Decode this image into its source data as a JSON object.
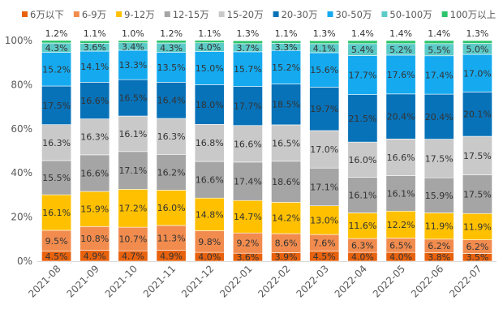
{
  "chart_data": {
    "type": "bar",
    "stacked": true,
    "percent": true,
    "title": "",
    "xlabel": "",
    "ylabel": "",
    "ylim": [
      0,
      100
    ],
    "yticks": [
      "0%",
      "20%",
      "40%",
      "60%",
      "80%",
      "100%"
    ],
    "legend_position": "top",
    "categories": [
      "2021-08",
      "2021-09",
      "2021-10",
      "2021-11",
      "2021-12",
      "2022-01",
      "2022-02",
      "2022-03",
      "2022-04",
      "2022-05",
      "2022-06",
      "2022-07"
    ],
    "series": [
      {
        "name": "6万以下",
        "color": "#E8620E",
        "values": [
          4.5,
          4.9,
          4.7,
          4.9,
          4.0,
          3.6,
          3.9,
          4.5,
          4.0,
          4.0,
          3.8,
          3.5
        ]
      },
      {
        "name": "6-9万",
        "color": "#F28C4E",
        "values": [
          9.5,
          10.8,
          10.7,
          11.3,
          9.8,
          9.2,
          8.6,
          7.6,
          6.3,
          6.5,
          6.2,
          6.2
        ]
      },
      {
        "name": "9-12万",
        "color": "#FFC000",
        "values": [
          16.1,
          15.9,
          17.2,
          16.0,
          14.8,
          14.7,
          14.2,
          13.0,
          11.6,
          12.2,
          11.9,
          11.9
        ]
      },
      {
        "name": "12-15万",
        "color": "#A5A5A5",
        "values": [
          15.5,
          16.6,
          17.1,
          16.2,
          16.6,
          17.4,
          18.6,
          17.1,
          16.1,
          16.1,
          15.9,
          17.5
        ]
      },
      {
        "name": "15-20万",
        "color": "#C9C9C9",
        "values": [
          16.3,
          16.3,
          16.1,
          16.3,
          16.8,
          16.6,
          16.5,
          17.0,
          16.0,
          16.6,
          17.5,
          17.5
        ]
      },
      {
        "name": "20-30万",
        "color": "#0872B8",
        "values": [
          17.5,
          16.6,
          16.5,
          16.4,
          18.0,
          17.7,
          18.5,
          19.7,
          21.5,
          20.4,
          20.4,
          20.1
        ]
      },
      {
        "name": "30-50万",
        "color": "#15AAF0",
        "values": [
          15.2,
          14.1,
          13.3,
          13.5,
          15.0,
          15.7,
          15.2,
          15.6,
          17.7,
          17.6,
          17.4,
          17.0
        ]
      },
      {
        "name": "50-100万",
        "color": "#5CCBC8",
        "values": [
          4.3,
          3.6,
          3.4,
          4.3,
          4.0,
          3.7,
          3.3,
          4.1,
          5.4,
          5.2,
          5.5,
          5.0
        ]
      },
      {
        "name": "100万以上",
        "color": "#2DC46C",
        "values": [
          1.2,
          1.1,
          1.0,
          1.2,
          1.1,
          1.3,
          1.1,
          1.3,
          1.4,
          1.4,
          1.4,
          1.3
        ]
      }
    ]
  }
}
